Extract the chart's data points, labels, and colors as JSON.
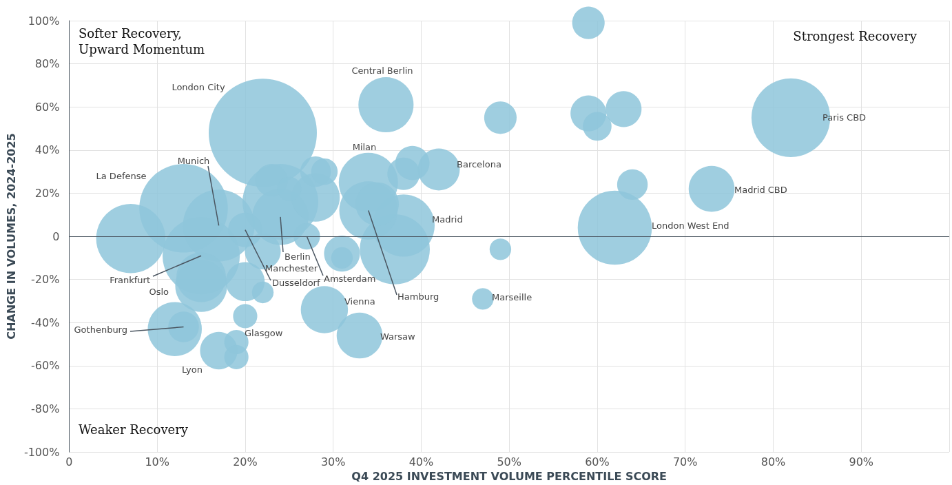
{
  "chart_data": {
    "type": "bubble",
    "xlabel": "Q4 2025 INVESTMENT VOLUME PERCENTILE SCORE",
    "ylabel": "CHANGE IN VOLUMES, 2024-2025",
    "xlim": [
      0,
      100
    ],
    "xticks": [
      0,
      {
        "value": 10,
        "label": "10%"
      },
      {
        "value": 20,
        "label": "20%"
      },
      {
        "value": 30,
        "label": "30%"
      },
      {
        "value": 40,
        "label": "40%"
      },
      {
        "value": 50,
        "label": "50%"
      },
      {
        "value": 60,
        "label": "60%"
      },
      {
        "value": 70,
        "label": "70%"
      },
      {
        "value": 80,
        "label": "80%"
      },
      {
        "value": 90,
        "label": "90%"
      },
      {
        "value": 100,
        "label": null
      }
    ],
    "ylim": [
      -100,
      100
    ],
    "yticks": [
      {
        "value": -100,
        "label": "-100%"
      },
      {
        "value": -80,
        "label": "-80%"
      },
      {
        "value": -60,
        "label": "-60%"
      },
      {
        "value": -40,
        "label": "-40%"
      },
      {
        "value": -20,
        "label": "-20%"
      },
      0,
      {
        "value": 20,
        "label": "20%"
      },
      {
        "value": 40,
        "label": "40%"
      },
      {
        "value": 60,
        "label": "60%"
      },
      {
        "value": 80,
        "label": "80%"
      },
      {
        "value": 100,
        "label": "100%"
      }
    ],
    "grid": true,
    "ref_lines": [
      {
        "axis": "y",
        "value": 0,
        "color": "#4a5560"
      }
    ],
    "series": [
      {
        "color": "#8ec6da",
        "x": [
          22,
          82,
          62,
          13,
          15,
          7,
          17,
          24,
          37,
          38,
          34,
          34,
          24,
          36,
          15,
          15,
          12,
          28,
          29,
          33,
          73,
          42,
          35,
          20,
          17,
          59,
          63,
          22,
          31,
          20,
          39,
          38,
          59,
          49,
          23,
          64,
          13,
          28,
          60,
          29,
          27,
          19,
          19,
          25,
          20,
          47,
          22,
          49,
          31
        ],
        "values": [
          48,
          55,
          4,
          13,
          -9,
          -1,
          5,
          16,
          -6,
          5,
          25,
          12,
          9,
          61,
          -23,
          -19,
          -43,
          18,
          -34,
          -46,
          22,
          31,
          15,
          -21,
          -53,
          57,
          59,
          -7,
          -8,
          3,
          34,
          29,
          99,
          55,
          26,
          24,
          -42,
          30,
          51,
          30,
          0,
          -49,
          -56,
          22,
          -37,
          -29,
          -26,
          -6,
          -10
        ],
        "sizes": [
          1,
          0.53,
          0.47,
          0.67,
          0.51,
          0.41,
          0.44,
          0.49,
          0.42,
          0.33,
          0.3,
          0.29,
          0.27,
          0.26,
          0.23,
          0.21,
          0.25,
          0.2,
          0.19,
          0.18,
          0.18,
          0.15,
          0.16,
          0.13,
          0.12,
          0.11,
          0.11,
          0.11,
          0.11,
          0.1,
          0.1,
          0.09,
          0.09,
          0.09,
          0.09,
          0.08,
          0.08,
          0.08,
          0.07,
          0.06,
          0.06,
          0.05,
          0.05,
          0.05,
          0.05,
          0.04,
          0.04,
          0.04,
          0.04
        ]
      }
    ],
    "annotations": [
      "Softer Recovery,\nUpward Momentum",
      "Strongest Recovery",
      "Weaker Recovery",
      "Central Berlin",
      "London City",
      "Milan",
      "Barcelona",
      {
        "text": "Munich",
        "x": 17,
        "y": 5
      },
      "La Defense",
      "Paris CBD",
      "Madrid CBD",
      "London West End",
      "Madrid",
      {
        "text": "Frankfurt",
        "x": 15,
        "y": -9
      },
      "Oslo",
      {
        "text": "Berlin",
        "x": 24,
        "y": 9
      },
      "Manchester",
      {
        "text": "Dusseldorf",
        "x": 20,
        "y": 3
      },
      {
        "text": "Amsterdam",
        "x": 27,
        "y": 0
      },
      {
        "text": "Hamburg",
        "x": 34,
        "y": 12
      },
      "Vienna",
      "Marseille",
      "Warsaw",
      "Glasgow",
      {
        "text": "Gothenburg",
        "x": 13,
        "y": -42
      },
      "Lyon"
    ]
  }
}
